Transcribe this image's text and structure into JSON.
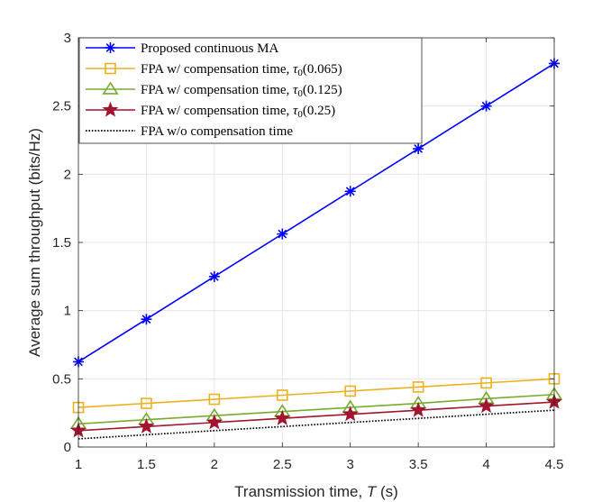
{
  "chart_data": {
    "type": "line",
    "xlabel": "Transmission time, ",
    "xlabel_var": "T",
    "xlabel_unit": " (s)",
    "ylabel": "Average sum throughput (bits/Hz)",
    "xlim": [
      1,
      4.5
    ],
    "ylim": [
      0,
      3
    ],
    "xticks": [
      1,
      1.5,
      2,
      2.5,
      3,
      3.5,
      4,
      4.5
    ],
    "xtick_labels": [
      "1",
      "1.5",
      "2",
      "2.5",
      "3",
      "3.5",
      "4",
      "4.5"
    ],
    "yticks": [
      0,
      0.5,
      1,
      1.5,
      2,
      2.5,
      3
    ],
    "ytick_labels": [
      "0",
      "0.5",
      "1",
      "1.5",
      "2",
      "2.5",
      "3"
    ],
    "grid": true,
    "legend_position": "top-left",
    "x": [
      1,
      1.5,
      2,
      2.5,
      3,
      3.5,
      4,
      4.5
    ],
    "series": [
      {
        "name": "Proposed continuous MA",
        "name_parts": {
          "pre": "Proposed continuous MA",
          "var": "",
          "sub": "",
          "post": ""
        },
        "color": "#0000ff",
        "marker": "asterisk",
        "dashed": false,
        "values": [
          0.625,
          0.937,
          1.25,
          1.562,
          1.875,
          2.187,
          2.5,
          2.812
        ]
      },
      {
        "name": "FPA w/ compensation time, τ0(0.065)",
        "name_parts": {
          "pre": "FPA w/ compensation time, ",
          "var": "τ",
          "sub": "0",
          "post": "(0.065)"
        },
        "color": "#edb120",
        "marker": "square",
        "dashed": false,
        "values": [
          0.29,
          0.32,
          0.35,
          0.38,
          0.41,
          0.44,
          0.47,
          0.5
        ]
      },
      {
        "name": "FPA w/ compensation time, τ0(0.125)",
        "name_parts": {
          "pre": "FPA w/ compensation time, ",
          "var": "τ",
          "sub": "0",
          "post": "(0.125)"
        },
        "color": "#77ac30",
        "marker": "triangle",
        "dashed": false,
        "values": [
          0.17,
          0.2,
          0.23,
          0.26,
          0.29,
          0.32,
          0.355,
          0.385
        ]
      },
      {
        "name": "FPA w/ compensation time, τ0(0.25)",
        "name_parts": {
          "pre": "FPA w/ compensation time, ",
          "var": "τ",
          "sub": "0",
          "post": "(0.25)"
        },
        "color": "#a2142f",
        "marker": "star",
        "dashed": false,
        "values": [
          0.12,
          0.15,
          0.18,
          0.21,
          0.24,
          0.27,
          0.3,
          0.33
        ]
      },
      {
        "name": "FPA w/o compensation time",
        "name_parts": {
          "pre": "FPA w/o compensation time",
          "var": "",
          "sub": "",
          "post": ""
        },
        "color": "#000000",
        "marker": "none",
        "dashed": true,
        "values": [
          0.06,
          0.09,
          0.12,
          0.15,
          0.18,
          0.21,
          0.24,
          0.27
        ]
      }
    ]
  }
}
